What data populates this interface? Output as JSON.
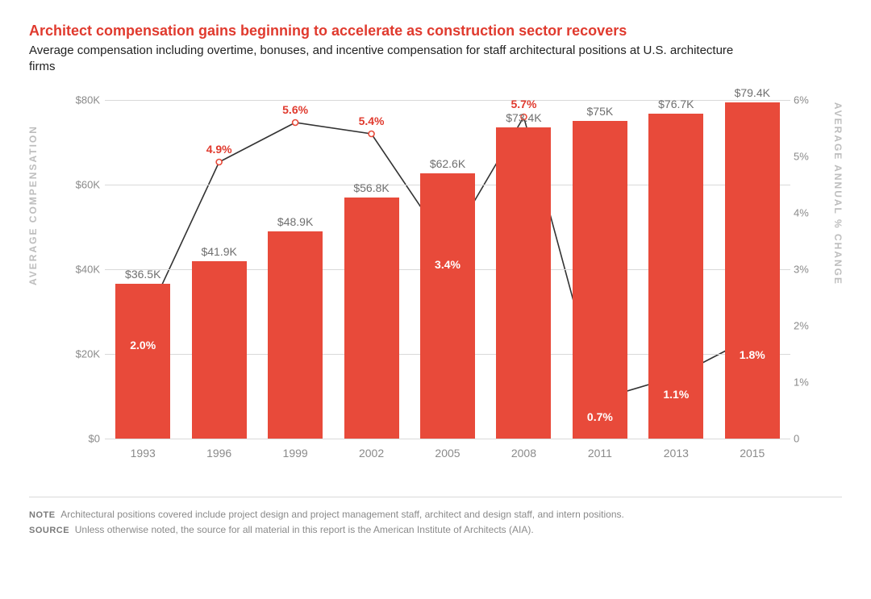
{
  "title": "Architect compensation gains beginning to accelerate as construction sector recovers",
  "subtitle": "Average compensation including overtime, bonuses, and incentive compensation for staff architectural positions at U.S. architecture firms",
  "chart": {
    "type": "bar+line",
    "y_left": {
      "title": "AVERAGE COMPENSATION",
      "min": 0,
      "max": 80000,
      "step": 20000,
      "tick_prefix": "$",
      "tick_suffix": "K",
      "tick_divisor": 1000
    },
    "y_right": {
      "title": "AVERAGE ANNUAL % CHANGE",
      "min": 0,
      "max": 6,
      "step": 1,
      "tick_suffix": "%"
    },
    "categories": [
      "1993",
      "1996",
      "1999",
      "2002",
      "2005",
      "2008",
      "2011",
      "2013",
      "2015"
    ],
    "bars": {
      "values": [
        36500,
        41900,
        48900,
        56800,
        62600,
        73400,
        75000,
        76700,
        79400
      ],
      "labels": [
        "$36.5K",
        "$41.9K",
        "$48.9K",
        "$56.8K",
        "$62.6K",
        "$73.4K",
        "$75K",
        "$76.7K",
        "$79.4K"
      ],
      "color": "#e84a3a",
      "bar_width_frac": 0.72
    },
    "line": {
      "values": [
        2.0,
        4.9,
        5.6,
        5.4,
        3.4,
        5.7,
        0.7,
        1.1,
        1.8
      ],
      "labels": [
        "2.0%",
        "4.9%",
        "5.6%",
        "5.4%",
        "3.4%",
        "5.7%",
        "0.7%",
        "1.1%",
        "1.8%"
      ],
      "stroke": "#333333",
      "stroke_width": 1.6,
      "marker_fill": "#ffffff",
      "marker_stroke": "#e84a3a",
      "marker_radius": 3.5,
      "label_colors": [
        "#ffffff",
        "#e03a2e",
        "#e03a2e",
        "#e03a2e",
        "#ffffff",
        "#e03a2e",
        "#ffffff",
        "#ffffff",
        "#ffffff"
      ],
      "label_dy": [
        24,
        -16,
        -16,
        -16,
        22,
        -16,
        22,
        22,
        22
      ]
    },
    "background": "#ffffff",
    "grid_color": "#d9d9d9",
    "tick_color": "#8a8a8a",
    "label_color": "#6f6f6f",
    "axis_title_color": "#bdbdbd",
    "font_family": "Arial",
    "tick_fontsize": 13,
    "barlabel_fontsize": 14,
    "pctlabel_fontsize": 14,
    "title_fontsize": 18,
    "title_color": "#e03a2e",
    "subtitle_fontsize": 15
  },
  "footer": {
    "note_label": "NOTE",
    "note_text": "Architectural positions covered include project design and project management staff, architect and design staff, and intern positions.",
    "source_label": "SOURCE",
    "source_text": "Unless otherwise noted, the source for all material in this report is the American Institute of Architects (AIA)."
  }
}
